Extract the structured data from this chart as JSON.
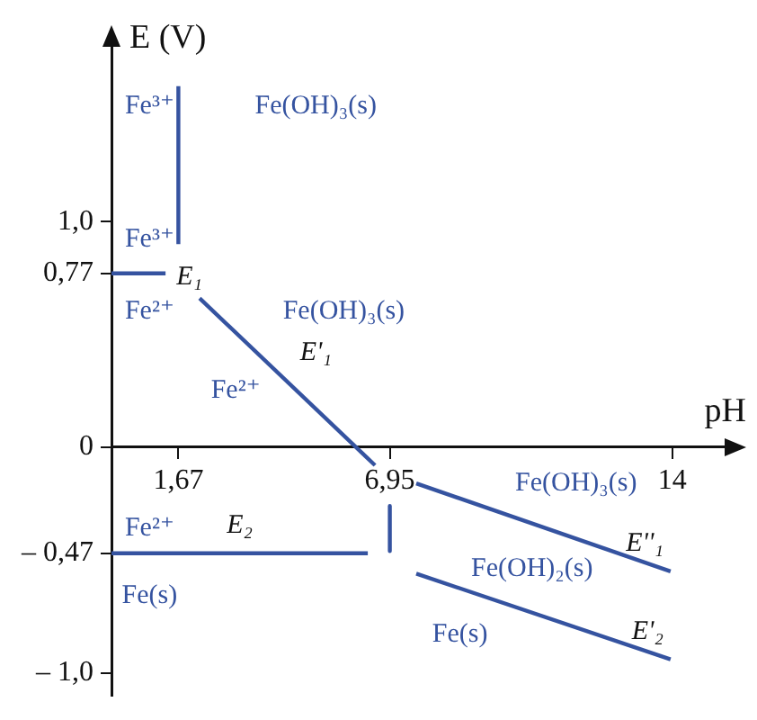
{
  "chart_data": {
    "type": "line",
    "xlabel": "pH",
    "ylabel": "E (V)",
    "xlim": [
      0,
      15.4
    ],
    "ylim": [
      -1.1,
      1.79
    ],
    "xticks": [
      {
        "value": 1.67,
        "label": "1,67"
      },
      {
        "value": 6.95,
        "label": "6,95"
      },
      {
        "value": 14,
        "label": "14"
      }
    ],
    "yticks": [
      {
        "value": 1,
        "label": "1,0"
      },
      {
        "value": 0.77,
        "label": "0,77"
      },
      0,
      {
        "value": -0.47,
        "label": "– 0,47"
      },
      {
        "value": -1,
        "label": "– 1,0"
      }
    ],
    "grid": false,
    "legend": false,
    "marker": "none",
    "line_style": "solid",
    "series": [
      {
        "name": "E₁",
        "color": "#3553a0",
        "x": [
          0,
          1.35
        ],
        "values": [
          0.77,
          0.77
        ]
      },
      {
        "color": "#3553a0",
        "x": [
          1.67,
          1.67
        ],
        "values": [
          0.9,
          1.6
        ]
      },
      {
        "name": "E'₁",
        "color": "#3553a0",
        "x": [
          2.2,
          6.58
        ],
        "values": [
          0.66,
          -0.08
        ]
      },
      {
        "name": "E₂",
        "color": "#3553a0",
        "x": [
          0,
          6.4
        ],
        "values": [
          -0.47,
          -0.47
        ]
      },
      {
        "color": "#3553a0",
        "x": [
          6.95,
          6.95
        ],
        "values": [
          -0.26,
          -0.46
        ]
      },
      {
        "name": "E''₁",
        "color": "#3553a0",
        "x": [
          7.61,
          13.96
        ],
        "values": [
          -0.16,
          -0.55
        ]
      },
      {
        "name": "E'₂",
        "color": "#3553a0",
        "x": [
          7.61,
          13.96
        ],
        "values": [
          -0.56,
          -0.94
        ]
      }
    ],
    "annotations": [
      "Fe³⁺",
      "Fe(OH)₃(s)",
      "Fe³⁺",
      "Fe²⁺",
      "Fe(OH)₃(s)",
      "Fe²⁺",
      "Fe²⁺",
      "Fe(s)",
      "Fe(OH)₃(s)",
      "Fe(OH)₂(s)",
      "Fe(s)"
    ]
  }
}
